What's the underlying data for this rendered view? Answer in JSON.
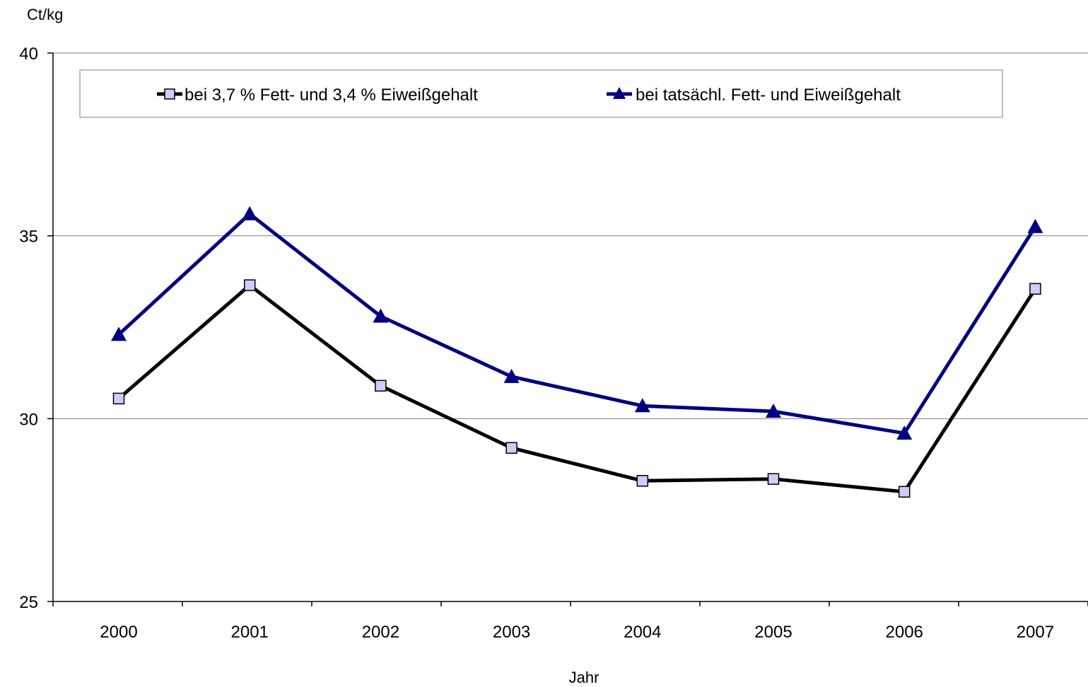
{
  "chart_data": {
    "type": "line",
    "ylabel": "Ct/kg",
    "xlabel": "Jahr",
    "ylim": [
      25,
      40
    ],
    "yticks": [
      25,
      30,
      35,
      40
    ],
    "grid": "horizontal",
    "legend_position": "top",
    "categories": [
      "2000",
      "2001",
      "2002",
      "2003",
      "2004",
      "2005",
      "2006",
      "2007"
    ],
    "series": [
      {
        "name": "bei 3,7 % Fett- und 3,4 % Eiweißgehalt",
        "values": [
          30.55,
          33.65,
          30.9,
          29.2,
          28.3,
          28.35,
          28.0,
          33.55
        ],
        "color": "#000000",
        "marker": "square",
        "marker_fill": "#ccccff"
      },
      {
        "name": "bei tatsächl. Fett- und Eiweißgehalt",
        "values": [
          32.3,
          35.6,
          32.8,
          31.15,
          30.35,
          30.2,
          29.6,
          35.25
        ],
        "color": "#000080",
        "marker": "triangle",
        "marker_fill": "#000080"
      }
    ]
  }
}
